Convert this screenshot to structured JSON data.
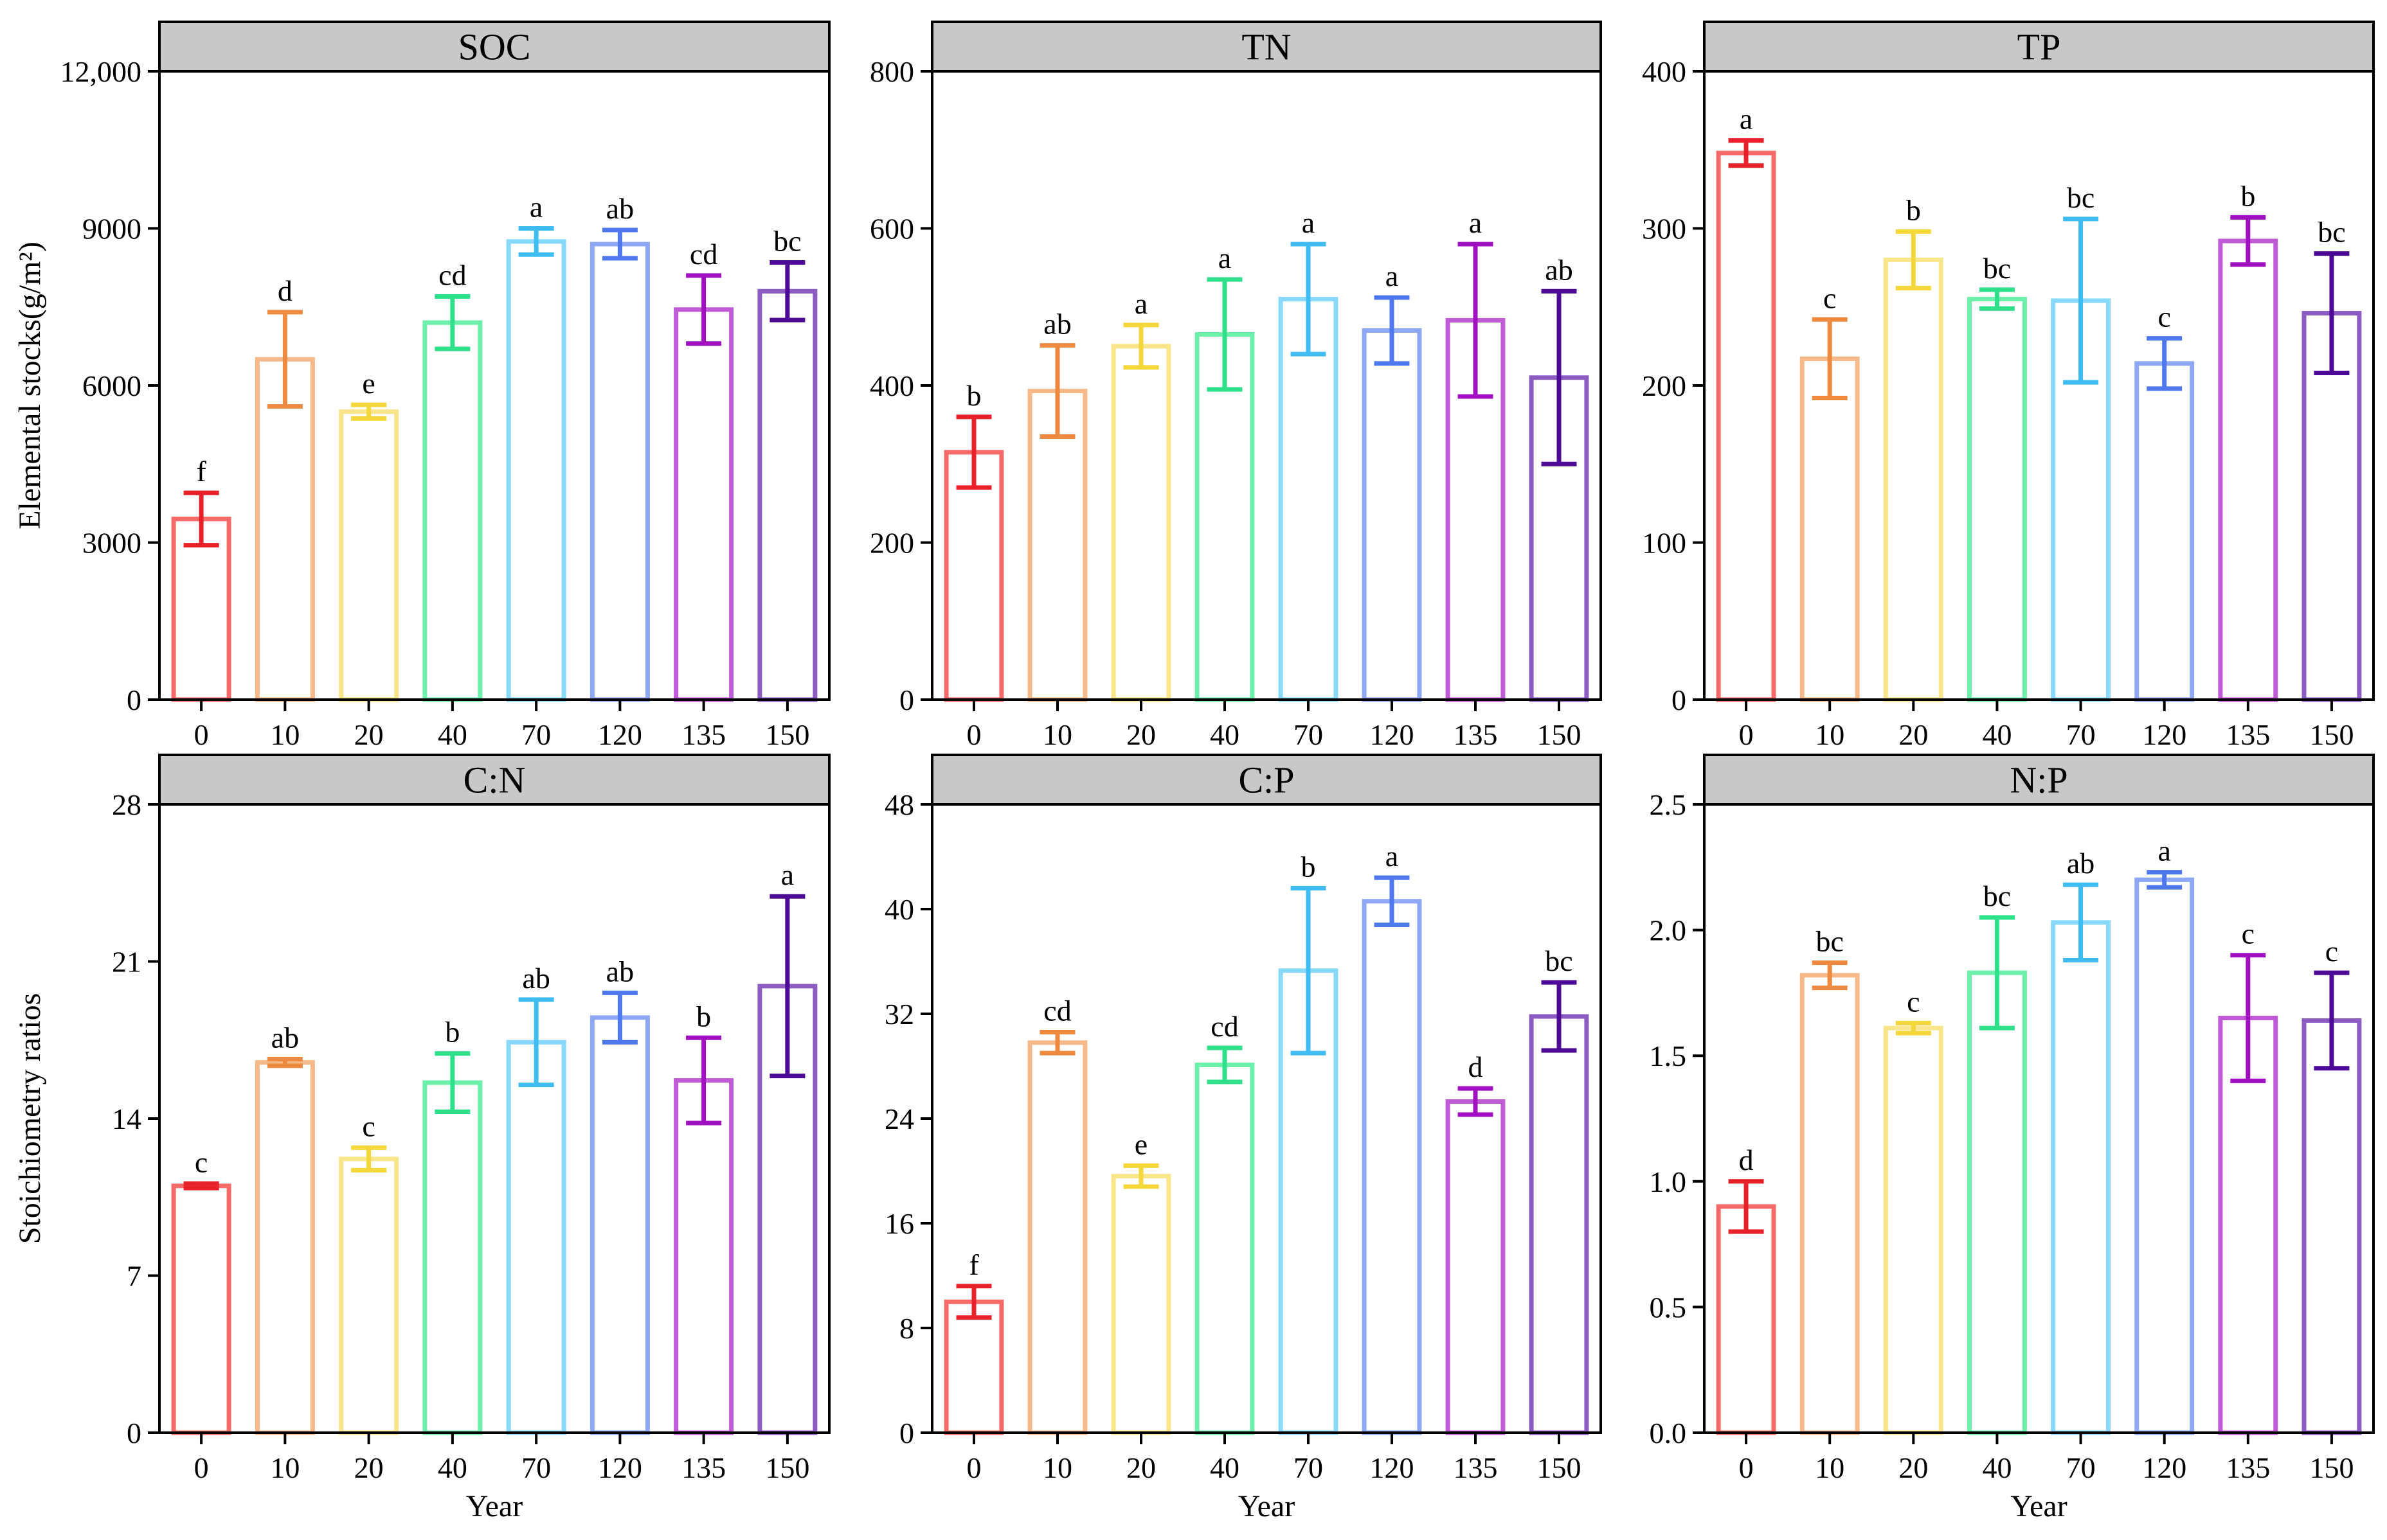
{
  "figure": {
    "x_label": "Year",
    "y_label_top": "Elemental stocks(g/m²)",
    "y_label_bottom": "Stoichiometry ratios",
    "categories": [
      "0",
      "10",
      "20",
      "40",
      "70",
      "120",
      "135",
      "150"
    ],
    "colors": {
      "bar": [
        "#f76a6a",
        "#f6b989",
        "#f9e68a",
        "#6ef0ad",
        "#88d9fb",
        "#8ea8f6",
        "#c05ad6",
        "#8c5cc2"
      ],
      "err": [
        "#e8202a",
        "#ee8a40",
        "#f4d73a",
        "#2fe08a",
        "#3fbdf3",
        "#4f78ee",
        "#a010c0",
        "#4c0a96"
      ]
    }
  },
  "chart_data": [
    {
      "type": "bar",
      "title": "SOC",
      "categories": [
        "0",
        "10",
        "20",
        "40",
        "70",
        "120",
        "135",
        "150"
      ],
      "values": [
        3450,
        6500,
        5500,
        7200,
        8750,
        8700,
        7450,
        7800
      ],
      "errors": [
        500,
        900,
        130,
        500,
        250,
        270,
        650,
        550
      ],
      "letters": [
        "f",
        "d",
        "e",
        "cd",
        "a",
        "ab",
        "cd",
        "bc"
      ],
      "ylim": [
        0,
        12000
      ],
      "yticks": [
        0,
        3000,
        6000,
        9000,
        12000
      ],
      "ytick_labels": [
        "0",
        "3000",
        "6000",
        "9000",
        "12,000"
      ],
      "xlabel": "",
      "ylabel": "Elemental stocks(g/m²)"
    },
    {
      "type": "bar",
      "title": "TN",
      "categories": [
        "0",
        "10",
        "20",
        "40",
        "70",
        "120",
        "135",
        "150"
      ],
      "values": [
        315,
        393,
        450,
        465,
        510,
        470,
        483,
        410
      ],
      "errors": [
        45,
        58,
        27,
        70,
        70,
        42,
        97,
        110
      ],
      "letters": [
        "b",
        "ab",
        "a",
        "a",
        "a",
        "a",
        "a",
        "ab"
      ],
      "ylim": [
        0,
        800
      ],
      "yticks": [
        0,
        200,
        400,
        600,
        800
      ],
      "ytick_labels": [
        "0",
        "200",
        "400",
        "600",
        "800"
      ],
      "xlabel": "",
      "ylabel": ""
    },
    {
      "type": "bar",
      "title": "TP",
      "categories": [
        "0",
        "10",
        "20",
        "40",
        "70",
        "120",
        "135",
        "150"
      ],
      "values": [
        348,
        217,
        280,
        255,
        254,
        214,
        292,
        246
      ],
      "errors": [
        8,
        25,
        18,
        6,
        52,
        16,
        15,
        38
      ],
      "letters": [
        "a",
        "c",
        "b",
        "bc",
        "bc",
        "c",
        "b",
        "bc"
      ],
      "ylim": [
        0,
        400
      ],
      "yticks": [
        0,
        100,
        200,
        300,
        400
      ],
      "ytick_labels": [
        "0",
        "100",
        "200",
        "300",
        "400"
      ],
      "xlabel": "",
      "ylabel": ""
    },
    {
      "type": "bar",
      "title": "C:N",
      "categories": [
        "0",
        "10",
        "20",
        "40",
        "70",
        "120",
        "135",
        "150"
      ],
      "values": [
        11.0,
        16.5,
        12.2,
        15.6,
        17.4,
        18.5,
        15.7,
        19.9
      ],
      "errors": [
        0.1,
        0.15,
        0.5,
        1.3,
        1.9,
        1.1,
        1.9,
        4.0
      ],
      "letters": [
        "c",
        "ab",
        "c",
        "b",
        "ab",
        "ab",
        "b",
        "a"
      ],
      "ylim": [
        0,
        28
      ],
      "yticks": [
        0,
        7,
        14,
        21,
        28
      ],
      "ytick_labels": [
        "0",
        "7",
        "14",
        "21",
        "28"
      ],
      "xlabel": "Year",
      "ylabel": "Stoichiometry ratios"
    },
    {
      "type": "bar",
      "title": "C:P",
      "categories": [
        "0",
        "10",
        "20",
        "40",
        "70",
        "120",
        "135",
        "150"
      ],
      "values": [
        10.0,
        29.8,
        19.6,
        28.1,
        35.3,
        40.6,
        25.3,
        31.8
      ],
      "errors": [
        1.2,
        0.8,
        0.8,
        1.3,
        6.3,
        1.8,
        1.0,
        2.6
      ],
      "letters": [
        "f",
        "cd",
        "e",
        "cd",
        "b",
        "a",
        "d",
        "bc"
      ],
      "ylim": [
        0,
        48
      ],
      "yticks": [
        0,
        8,
        16,
        24,
        32,
        40,
        48
      ],
      "ytick_labels": [
        "0",
        "8",
        "16",
        "24",
        "32",
        "40",
        "48"
      ],
      "xlabel": "Year",
      "ylabel": ""
    },
    {
      "type": "bar",
      "title": "N:P",
      "categories": [
        "0",
        "10",
        "20",
        "40",
        "70",
        "120",
        "135",
        "150"
      ],
      "values": [
        0.9,
        1.82,
        1.61,
        1.83,
        2.03,
        2.2,
        1.65,
        1.64
      ],
      "errors": [
        0.1,
        0.05,
        0.02,
        0.22,
        0.15,
        0.03,
        0.25,
        0.19
      ],
      "letters": [
        "d",
        "bc",
        "c",
        "bc",
        "ab",
        "a",
        "c",
        "c"
      ],
      "ylim": [
        0,
        2.5
      ],
      "yticks": [
        0,
        0.5,
        1.0,
        1.5,
        2.0,
        2.5
      ],
      "ytick_labels": [
        "0.0",
        "0.5",
        "1.0",
        "1.5",
        "2.0",
        "2.5"
      ],
      "xlabel": "Year",
      "ylabel": ""
    }
  ]
}
